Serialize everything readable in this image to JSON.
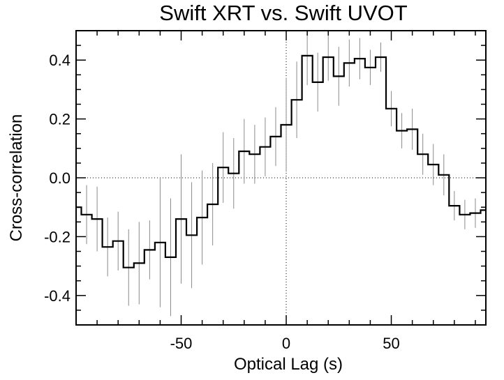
{
  "chart_data": {
    "type": "line",
    "style": "step-histogram-with-error-bars",
    "title": "Swift XRT  vs.  Swift UVOT",
    "xlabel": "Optical Lag (s)",
    "ylabel": "Cross-correlation",
    "xlim": [
      -100,
      95
    ],
    "ylim": [
      -0.5,
      0.5
    ],
    "xticks": [
      -50,
      0,
      50
    ],
    "xtick_labels": [
      "-50",
      "0",
      "50"
    ],
    "yticks": [
      -0.4,
      -0.2,
      0.0,
      0.2,
      0.4
    ],
    "ytick_labels": [
      "-0.4",
      "-0.2",
      "0.0",
      "0.2",
      "0.4"
    ],
    "reference_lines": {
      "x": 0,
      "y": 0,
      "style": "dotted"
    },
    "bin_width": 5,
    "series": [
      {
        "name": "cross-correlation",
        "x": [
          -100,
          -95,
          -90,
          -85,
          -80,
          -75,
          -70,
          -65,
          -60,
          -55,
          -50,
          -45,
          -40,
          -35,
          -30,
          -25,
          -20,
          -15,
          -10,
          -5,
          0,
          5,
          10,
          15,
          20,
          25,
          30,
          35,
          40,
          45,
          50,
          55,
          60,
          65,
          70,
          75,
          80,
          85,
          90,
          95
        ],
        "values": [
          -0.1,
          -0.125,
          -0.14,
          -0.235,
          -0.215,
          -0.305,
          -0.29,
          -0.245,
          -0.22,
          -0.27,
          -0.14,
          -0.195,
          -0.135,
          -0.09,
          0.035,
          0.015,
          0.09,
          0.08,
          0.105,
          0.14,
          0.18,
          0.265,
          0.415,
          0.325,
          0.41,
          0.345,
          0.39,
          0.405,
          0.375,
          0.41,
          0.235,
          0.16,
          0.165,
          0.08,
          0.045,
          0.01,
          -0.095,
          -0.125,
          -0.12,
          -0.11
        ],
        "errors": [
          0.1,
          0.1,
          0.11,
          0.1,
          0.1,
          0.13,
          0.14,
          0.1,
          0.22,
          0.2,
          0.22,
          0.18,
          0.16,
          0.14,
          0.12,
          0.12,
          0.11,
          0.1,
          0.1,
          0.1,
          0.16,
          0.13,
          0.1,
          0.1,
          0.08,
          0.1,
          0.08,
          0.07,
          0.06,
          0.05,
          0.06,
          0.06,
          0.07,
          0.07,
          0.07,
          0.07,
          0.05,
          0.05,
          0.05,
          0.05
        ]
      }
    ]
  }
}
